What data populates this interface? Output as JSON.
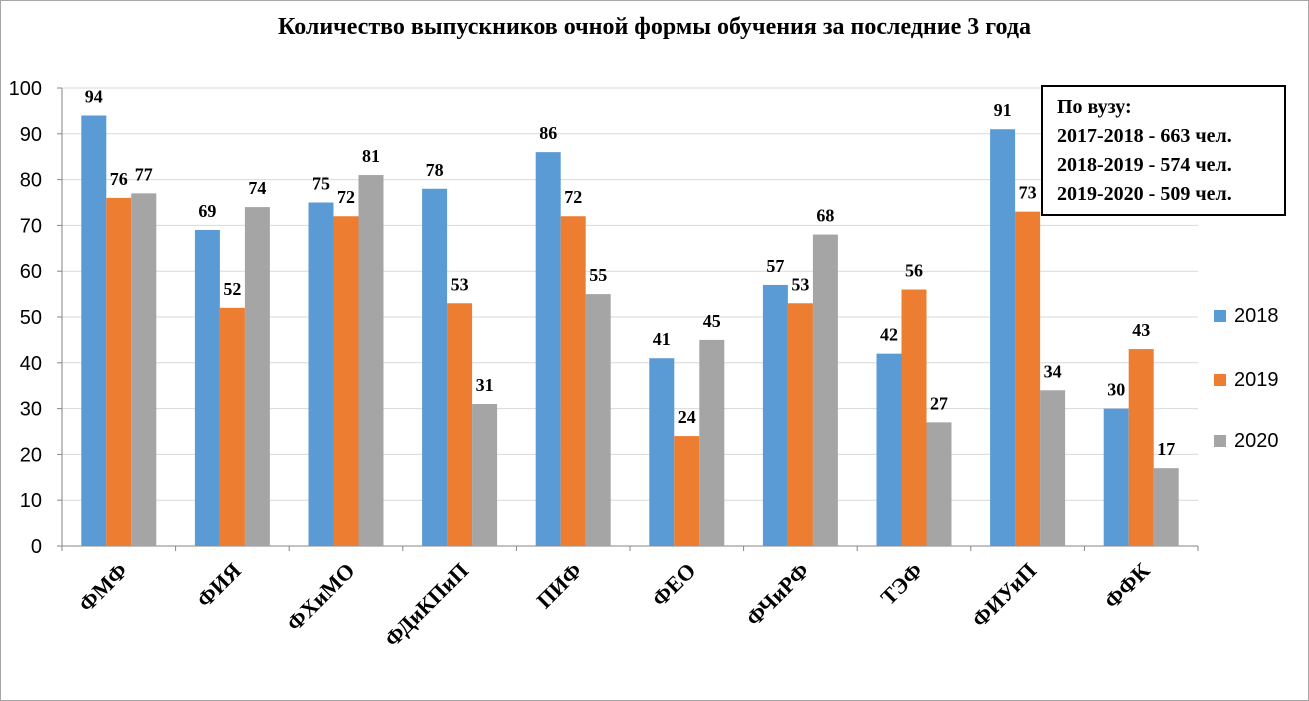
{
  "chart_data": {
    "type": "bar",
    "title": "Количество выпускников очной формы обучения  за последние 3 года",
    "categories": [
      "ФМФ",
      "ФИЯ",
      "ФХиМО",
      "ФДиКПиП",
      "ПИФ",
      "ФЕО",
      "ФЧиРФ",
      "ТЭФ",
      "ФИУиП",
      "ФФК"
    ],
    "series": [
      {
        "name": "2018",
        "color": "#5b9bd5",
        "values": [
          94,
          69,
          75,
          78,
          86,
          41,
          57,
          42,
          91,
          30
        ]
      },
      {
        "name": "2019",
        "color": "#ed7d31",
        "values": [
          76,
          52,
          72,
          53,
          72,
          24,
          53,
          56,
          73,
          43
        ]
      },
      {
        "name": "2020",
        "color": "#a5a5a5",
        "values": [
          77,
          74,
          81,
          31,
          55,
          45,
          68,
          27,
          34,
          17
        ]
      }
    ],
    "ylim": [
      0,
      100
    ],
    "yticks": [
      0,
      10,
      20,
      30,
      40,
      50,
      60,
      70,
      80,
      90,
      100
    ],
    "grid": true,
    "legend_position": "right",
    "annotation": {
      "lines": [
        "По вузу:",
        "2017-2018 - 663 чел.",
        "2018-2019 - 574 чел.",
        "2019-2020 - 509 чел."
      ]
    }
  }
}
